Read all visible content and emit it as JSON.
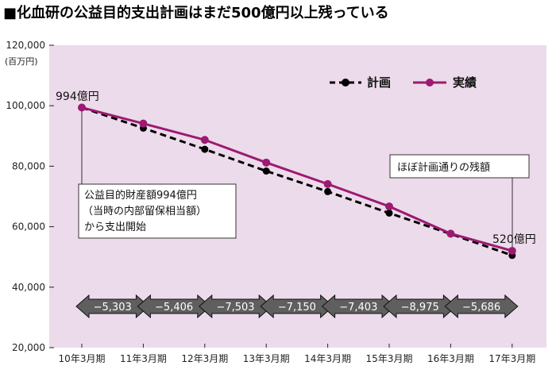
{
  "title": "■化血研の公益目的支出計画はまだ500億円以上残っている",
  "colors": {
    "plot_bg": "#ecdbea",
    "actual": "#9c1a72",
    "plan": "#000000",
    "arrow_fill": "#5f5f5f"
  },
  "chart_data": {
    "type": "line",
    "y_unit": "(百万円)",
    "categories": [
      "10年3月期",
      "11年3月期",
      "12年3月期",
      "13年3月期",
      "14年3月期",
      "15年3月期",
      "16年3月期",
      "17年3月期"
    ],
    "ylim": [
      20000,
      120000
    ],
    "y_ticks": [
      20000,
      40000,
      60000,
      80000,
      100000,
      120000
    ],
    "y_tick_labels": [
      "20,000",
      "40,000",
      "60,000",
      "80,000",
      "100,000",
      "120,000"
    ],
    "grid": false,
    "legend_position": "top-right",
    "series": [
      {
        "name": "計画",
        "style": "dashed",
        "values": [
          99400,
          92600,
          85600,
          78400,
          71600,
          64500,
          57600,
          50500
        ]
      },
      {
        "name": "実績",
        "style": "solid",
        "values": [
          99400,
          94100,
          88700,
          81200,
          74100,
          66700,
          57700,
          52000
        ]
      }
    ],
    "annotations": {
      "start_value": "994億円",
      "end_value": "520億円",
      "start_note": [
        "公益目的財産額994億円",
        "（当時の内部留保相当額）",
        "から支出開始"
      ],
      "end_note": "ほぼ計画通りの残額"
    },
    "yearly_changes": [
      "−5,303",
      "−5,406",
      "−7,503",
      "−7,150",
      "−7,403",
      "−8,975",
      "−5,686"
    ]
  }
}
